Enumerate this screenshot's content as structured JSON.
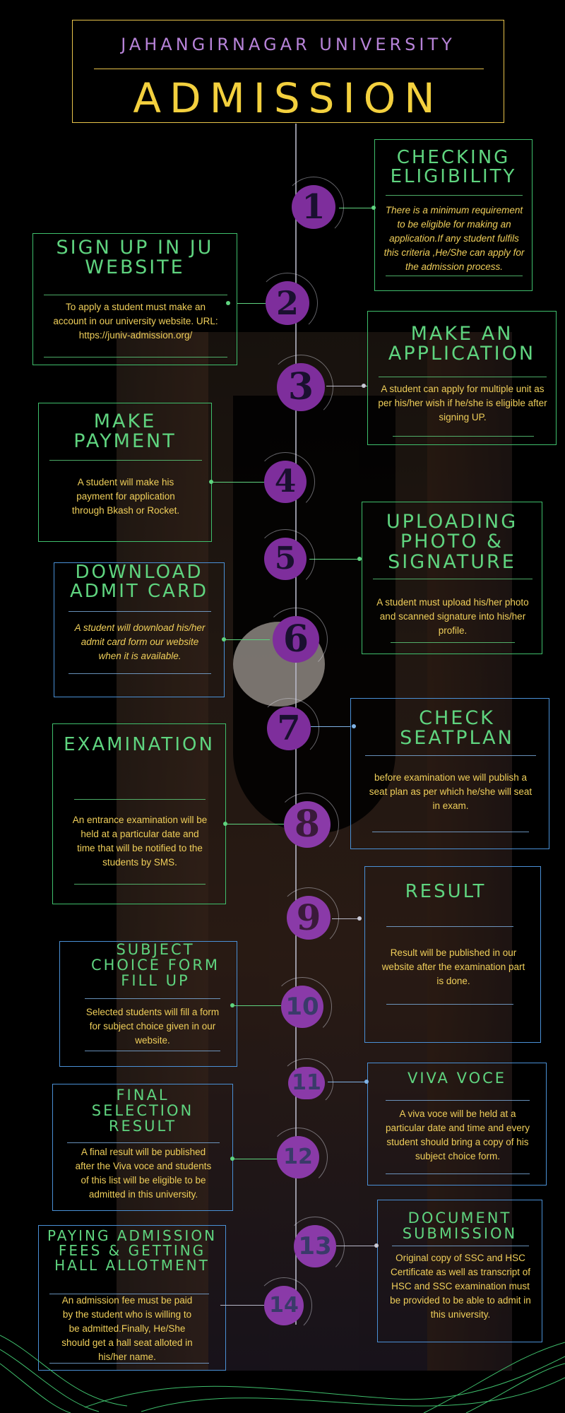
{
  "header": {
    "university": "JAHANGIRNAGAR UNIVERSITY",
    "title": "ADMISSION"
  },
  "colors": {
    "background": "#000000",
    "heading_green": "#5fd47f",
    "body_yellow": "#f0cf5a",
    "title_yellow": "#f3d03e",
    "purple": "#7e2e9c",
    "lavender": "#b783d8",
    "border_blue": "#4a90d6"
  },
  "steps": [
    {
      "number": "1",
      "title": "CHECKING ELIGIBILITY",
      "text": "There is a minimum requirement to be eligible for making an application.If any student fulfils this criteria ,He/She can apply for the admission process."
    },
    {
      "number": "2",
      "title": "SIGN UP IN JU WEBSITE",
      "text": "To apply a student must make an account in our university website. URL:  https://juniv-admission.org/"
    },
    {
      "number": "3",
      "title": "MAKE AN APPLICATION",
      "text": "A student can apply for multiple unit as per his/her wish if he/she is eligible after signing UP."
    },
    {
      "number": "4",
      "title": "MAKE PAYMENT",
      "text": "A student will make his payment for application through Bkash or Rocket."
    },
    {
      "number": "5",
      "title": "UPLOADING PHOTO & SIGNATURE",
      "text": "A student must upload his/her photo and scanned signature into his/her profile."
    },
    {
      "number": "6",
      "title": "DOWNLOAD ADMIT CARD",
      "text": "A student will download his/her admit card form our website when it is available."
    },
    {
      "number": "7",
      "title": "CHECK SEATPLAN",
      "text": "before examination we will publish a seat plan as per which he/she will seat in exam."
    },
    {
      "number": "8",
      "title": "EXAMINATION",
      "text": "An entrance examination will be held at a particular date and time that will be notified to the students by SMS."
    },
    {
      "number": "9",
      "title": "RESULT",
      "text": "Result will be published in our website after the examination part is done."
    },
    {
      "number": "10",
      "title": "SUBJECT CHOICE FORM FILL UP",
      "text": "Selected students will fill a form for subject choice given in our website."
    },
    {
      "number": "11",
      "title": "VIVA VOCE",
      "text": "A viva voce will be held at a particular date and time and every student should bring a copy of his subject choice form."
    },
    {
      "number": "12",
      "title": "FINAL SELECTION RESULT",
      "text": "A final result will be published after the Viva voce  and students of this list will be eligible to be admitted in this university."
    },
    {
      "number": "13",
      "title": "DOCUMENT SUBMISSION",
      "text": "Original copy of SSC and HSC Certificate as well as transcript of HSC and SSC examination must be provided to be able to admit in this university."
    },
    {
      "number": "14",
      "title": "PAYING ADMISSION FEES & GETTING HALL ALLOTMENT",
      "text": "An admission fee must be paid by the student who is willing to be admitted.Finally, He/She should get a hall seat alloted in his/her name."
    }
  ]
}
